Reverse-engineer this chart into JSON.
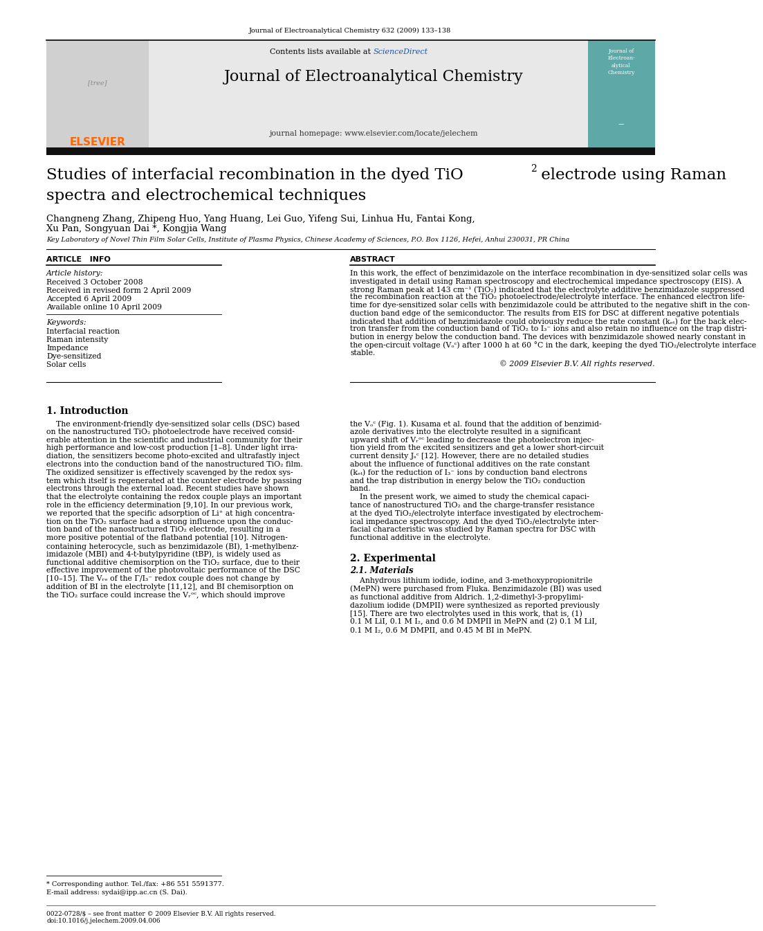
{
  "journal_header": "Journal of Electroanalytical Chemistry 632 (2009) 133–138",
  "contents_line": "Contents lists available at ",
  "sciencedirect_text": "ScienceDirect",
  "sciencedirect_color": "#1a56b0",
  "journal_name": "Journal of Electroanalytical Chemistry",
  "journal_homepage": "journal homepage: www.elsevier.com/locate/jelechem",
  "elsevier_color": "#ff6600",
  "elsevier_text": "ELSEVIER",
  "header_bg": "#e8e8e8",
  "black_bar_color": "#111111",
  "page_bg": "#ffffff",
  "article_title_line1": "Studies of interfacial recombination in the dyed TiO",
  "article_title_sub": "2",
  "article_title_line1b": " electrode using Raman",
  "article_title_line2": "spectra and electrochemical techniques",
  "authors_line1": "Changneng Zhang, Zhipeng Huo, Yang Huang, Lei Guo, Yifeng Sui, Linhua Hu, Fantai Kong,",
  "authors_line2": "Xu Pan, Songyuan Dai *, Kongjia Wang",
  "affiliation": "Key Laboratory of Novel Thin Film Solar Cells, Institute of Plasma Physics, Chinese Academy of Sciences, P.O. Box 1126, Hefei, Anhui 230031, PR China",
  "section_article_info": "ARTICLE   INFO",
  "section_abstract": "ABSTRACT",
  "article_history_title": "Article history:",
  "received1": "Received 3 October 2008",
  "received2": "Received in revised form 2 April 2009",
  "accepted": "Accepted 6 April 2009",
  "available": "Available online 10 April 2009",
  "keywords_title": "Keywords:",
  "keywords": [
    "Interfacial reaction",
    "Raman intensity",
    "Impedance",
    "Dye-sensitized",
    "Solar cells"
  ],
  "copyright": "© 2009 Elsevier B.V. All rights reserved.",
  "intro_title": "1. Introduction",
  "section2_title": "2. Experimental",
  "section21_title": "2.1. Materials",
  "footnote_star": "* Corresponding author. Tel./fax: +86 551 5591377.",
  "footnote_email": "E-mail address: sydai@ipp.ac.cn (S. Dai).",
  "footer1": "0022-0728/$ – see front matter © 2009 Elsevier B.V. All rights reserved.",
  "footer2": "doi:10.1016/j.jelechem.2009.04.006",
  "abstract_lines": [
    "In this work, the effect of benzimidazole on the interface recombination in dye-sensitized solar cells was",
    "investigated in detail using Raman spectroscopy and electrochemical impedance spectroscopy (EIS). A",
    "strong Raman peak at 143 cm⁻¹ (TiO₂) indicated that the electrolyte additive benzimidazole suppressed",
    "the recombination reaction at the TiO₂ photoelectrode/electrolyte interface. The enhanced electron life-",
    "time for dye-sensitized solar cells with benzimidazole could be attributed to the negative shift in the con-",
    "duction band edge of the semiconductor. The results from EIS for DSC at different negative potentials",
    "indicated that addition of benzimidazole could obviously reduce the rate constant (kₑₜ) for the back elec-",
    "tron transfer from the conduction band of TiO₂ to I₃⁻ ions and also retain no influence on the trap distri-",
    "bution in energy below the conduction band. The devices with benzimidazole showed nearly constant in",
    "the open-circuit voltage (Vₒᶜ) after 1000 h at 60 °C in the dark, keeping the dyed TiO₂/electrolyte interface",
    "stable."
  ],
  "intro_col1_lines": [
    "    The environment-friendly dye-sensitized solar cells (DSC) based",
    "on the nanostructured TiO₂ photoelectrode have received consid-",
    "erable attention in the scientific and industrial community for their",
    "high performance and low-cost production [1–8]. Under light irra-",
    "diation, the sensitizers become photo-excited and ultrafastly inject",
    "electrons into the conduction band of the nanostructured TiO₂ film.",
    "The oxidized sensitizer is effectively scavenged by the redox sys-",
    "tem which itself is regenerated at the counter electrode by passing",
    "electrons through the external load. Recent studies have shown",
    "that the electrolyte containing the redox couple plays an important",
    "role in the efficiency determination [9,10]. In our previous work,",
    "we reported that the specific adsorption of Li⁺ at high concentra-",
    "tion on the TiO₂ surface had a strong influence upon the conduc-",
    "tion band of the nanostructured TiO₂ electrode, resulting in a",
    "more positive potential of the flatband potential [10]. Nitrogen-",
    "containing heterocycle, such as benzimidazole (BI), 1-methylbenz-",
    "imidazole (MBI) and 4-t-butylpyridine (tBP), is widely used as",
    "functional additive chemisorption on the TiO₂ surface, due to their",
    "effective improvement of the photovoltaic performance of the DSC",
    "[10–15]. The Vᵣₑ⁤ of the Γ/I₃⁻ redox couple does not change by",
    "addition of BI in the electrolyte [11,12], and BI chemisorption on",
    "the TiO₂ surface could increase the Vᵣᵒᶜ, which should improve"
  ],
  "intro_col2_lines": [
    "the Vₒᶜ (Fig. 1). Kusama et al. found that the addition of benzimid-",
    "azole derivatives into the electrolyte resulted in a significant",
    "upward shift of Vᵣᵒᶜ leading to decrease the photoelectron injec-",
    "tion yield from the excited sensitizers and get a lower short-circuit",
    "current density Jₛᶜ [12]. However, there are no detailed studies",
    "about the influence of functional additives on the rate constant",
    "(kₑₜ) for the reduction of I₃⁻ ions by conduction band electrons",
    "and the trap distribution in energy below the TiO₂ conduction",
    "band.",
    "    In the present work, we aimed to study the chemical capaci-",
    "tance of nanostructured TiO₂ and the charge-transfer resistance",
    "at the dyed TiO₂/electrolyte interface investigated by electrochem-",
    "ical impedance spectroscopy. And the dyed TiO₂/electrolyte inter-",
    "facial characteristic was studied by Raman spectra for DSC with",
    "functional additive in the electrolyte."
  ],
  "sec21_lines": [
    "    Anhydrous lithium iodide, iodine, and 3-methoxypropionitrile",
    "(MePN) were purchased from Fluka. Benzimidazole (BI) was used",
    "as functional additive from Aldrich. 1,2-dimethyl-3-propylimi-",
    "dazolium iodide (DMPII) were synthesized as reported previously",
    "[15]. There are two electrolytes used in this work, that is, (1)",
    "0.1 M LiI, 0.1 M I₂, and 0.6 M DMPII in MePN and (2) 0.1 M LiI,",
    "0.1 M I₂, 0.6 M DMPII, and 0.45 M BI in MePN."
  ]
}
